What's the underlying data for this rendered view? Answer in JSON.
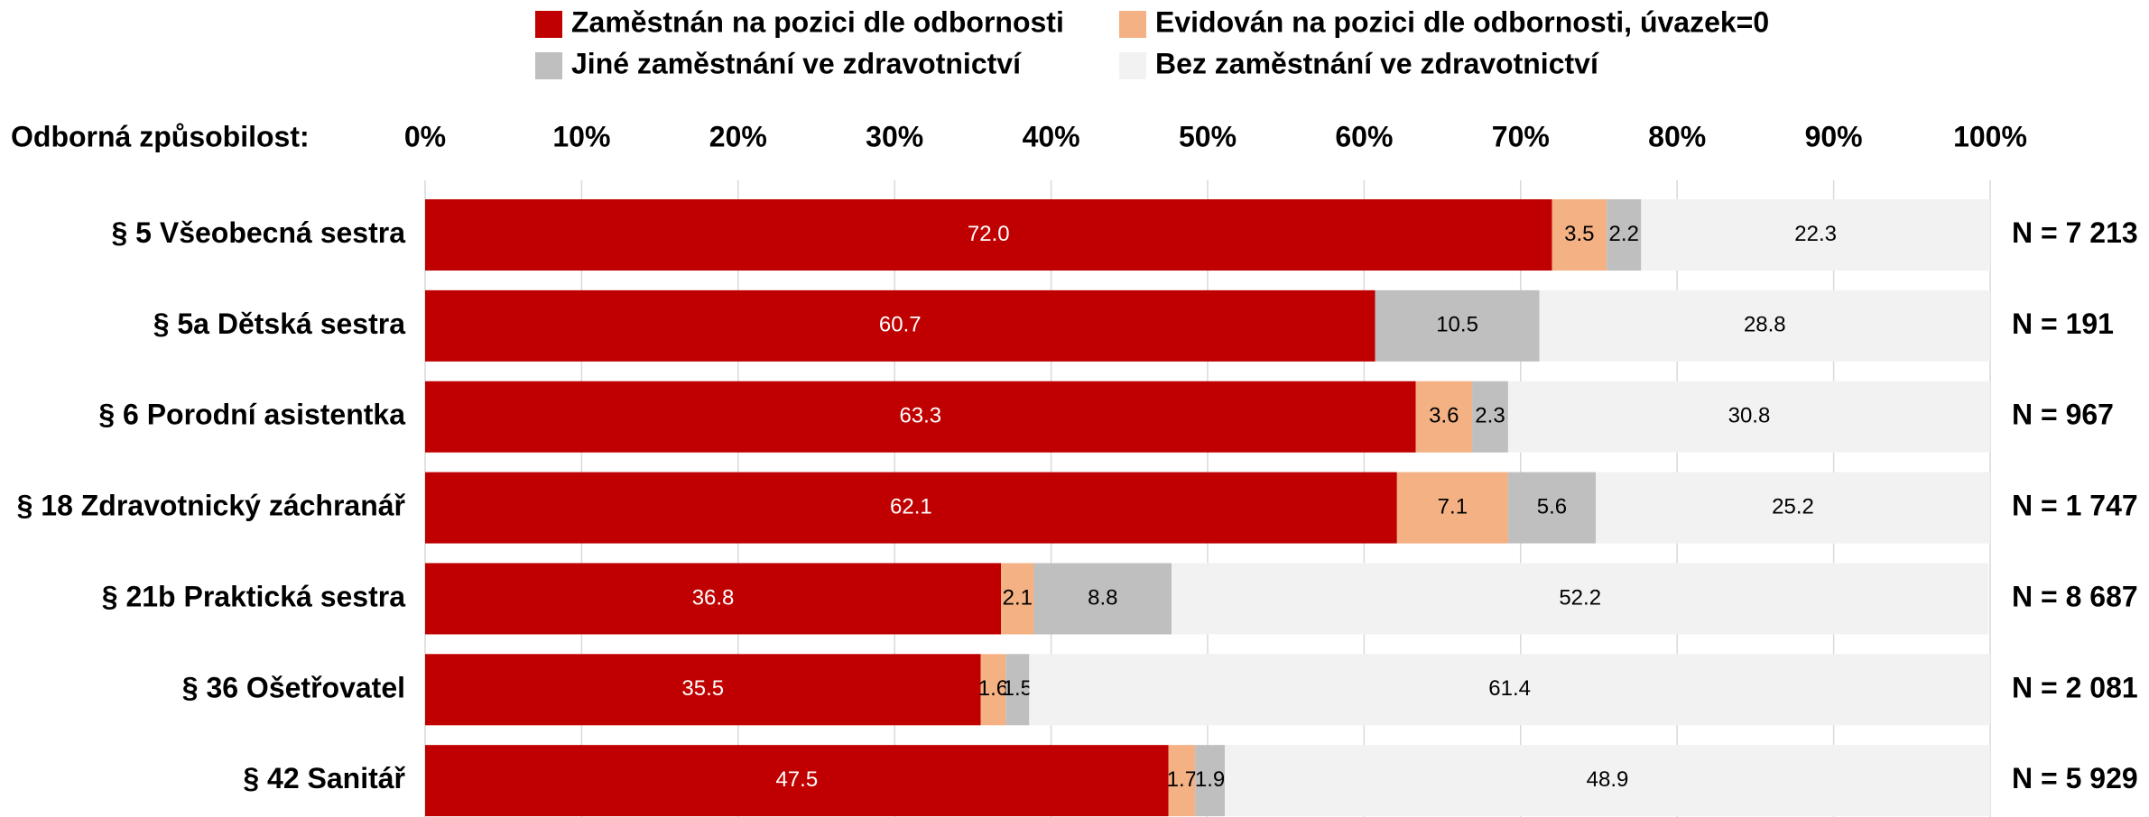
{
  "chart_data": {
    "type": "stacked-bar-horizontal",
    "axis_label": "Odborná způsobilost:",
    "categories": [
      "§ 5 Všeobecná sestra",
      "§ 5a Dětská sestra",
      "§ 6 Porodní asistentka",
      "§ 18 Zdravotnický záchranář",
      "§ 21b Praktická sestra",
      "§ 36 Ošetřovatel",
      "§ 42 Sanitář"
    ],
    "n_labels": [
      "N = 7 213",
      "N = 191",
      "N = 967",
      "N = 1 747",
      "N = 8 687",
      "N = 2 081",
      "N = 5 929"
    ],
    "series": [
      {
        "name": "Zaměstnán na pozici dle odbornosti",
        "color": "#c00000",
        "label_color": "#ffffff",
        "values": [
          72.0,
          60.7,
          63.3,
          62.1,
          36.8,
          35.5,
          47.5
        ],
        "value_labels": [
          "72.0",
          "60.7",
          "63.3",
          "62.1",
          "36.8",
          "35.5",
          "47.5"
        ]
      },
      {
        "name": "Evidován na pozici dle odbornosti, úvazek=0",
        "color": "#f4b183",
        "label_color": "#000000",
        "values": [
          3.5,
          null,
          3.6,
          7.1,
          2.1,
          1.6,
          1.7
        ],
        "value_labels": [
          "3.5",
          null,
          "3.6",
          "7.1",
          "2.1",
          "1.6",
          "1.7"
        ]
      },
      {
        "name": "Jiné zaměstnání ve zdravotnictví",
        "color": "#bfbfbf",
        "label_color": "#000000",
        "values": [
          2.2,
          10.5,
          2.3,
          5.6,
          8.8,
          1.5,
          1.9
        ],
        "value_labels": [
          "2.2",
          "10.5",
          "2.3",
          "5.6",
          "8.8",
          "1.5",
          "1.9"
        ]
      },
      {
        "name": "Bez zaměstnání ve zdravotnictví",
        "color": "#f2f2f2",
        "label_color": "#000000",
        "values": [
          22.3,
          28.8,
          30.8,
          25.2,
          52.2,
          61.4,
          48.9
        ],
        "value_labels": [
          "22.3",
          "28.8",
          "30.8",
          "25.2",
          "52.2",
          "61.4",
          "48.9"
        ]
      }
    ],
    "xlim": [
      0,
      100
    ],
    "xticks": [
      {
        "value": 0,
        "label": "0%"
      },
      {
        "value": 10,
        "label": "10%"
      },
      {
        "value": 20,
        "label": "20%"
      },
      {
        "value": 30,
        "label": "30%"
      },
      {
        "value": 40,
        "label": "40%"
      },
      {
        "value": 50,
        "label": "50%"
      },
      {
        "value": 60,
        "label": "60%"
      },
      {
        "value": 70,
        "label": "70%"
      },
      {
        "value": 80,
        "label": "80%"
      },
      {
        "value": 90,
        "label": "90%"
      },
      {
        "value": 100,
        "label": "100%"
      }
    ],
    "grid": true
  }
}
